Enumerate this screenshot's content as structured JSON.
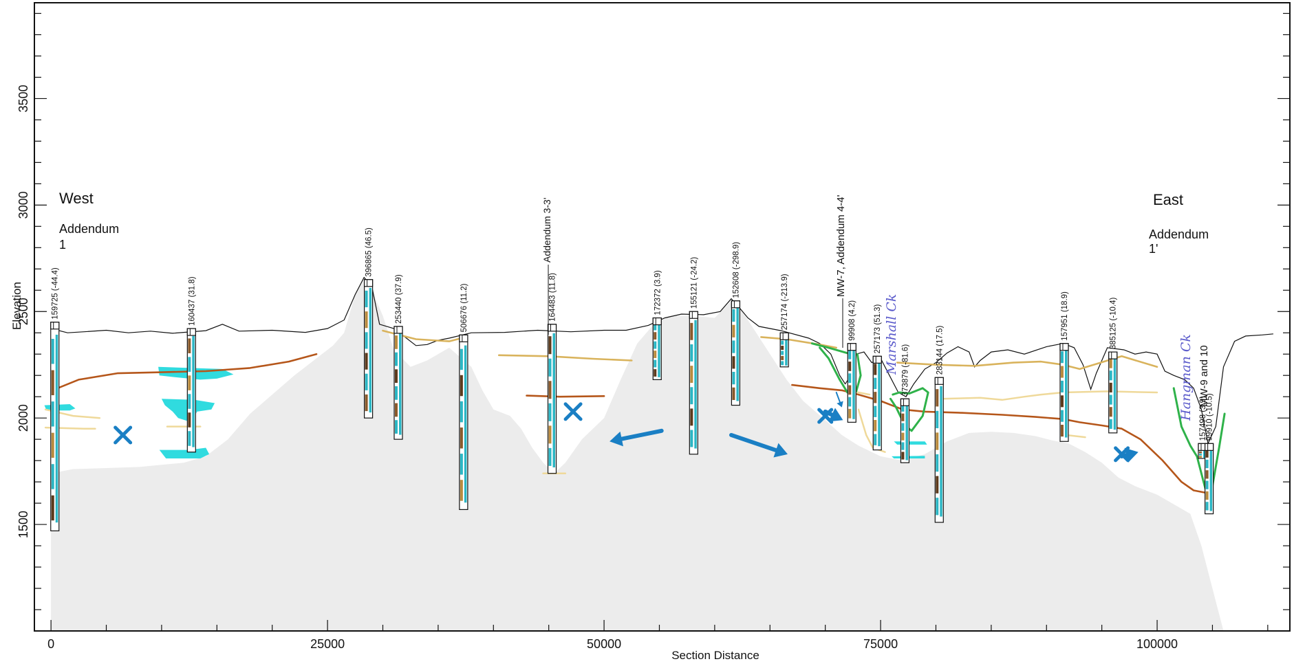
{
  "axes": {
    "x_label": "Section Distance",
    "y_label": "Elevation",
    "x_ticks": [
      "0",
      "25000",
      "50000",
      "75000",
      "100000"
    ],
    "y_ticks": [
      "1500",
      "2000",
      "2500",
      "3000",
      "3500"
    ],
    "x_range": [
      -1500,
      112000
    ],
    "y_range": [
      1000,
      3950
    ]
  },
  "labels": {
    "west": "West",
    "east": "East",
    "addendum_left_1": "Addendum",
    "addendum_left_2": "1",
    "addendum_right_1": "Addendum",
    "addendum_right_2": "1'",
    "marshall": "Marshall Ck",
    "hangman": "Hangman Ck",
    "addendum_33": "Addendum 3-3'",
    "mw7": "MW-7, Addendum 4-4'",
    "mw9": "MW-9 and 10"
  },
  "colors": {
    "background": "#ffffff",
    "bedrock": "#ececec",
    "ground_surface": "#111111",
    "brown_contact": "#b5561a",
    "tan_contact": "#d9b35c",
    "light_tan_contact": "#efd99a",
    "green_contact": "#2fb24a",
    "aquifer_cyan": "#19d7db",
    "arrow_blue": "#1a7fc4"
  },
  "wells": [
    {
      "label": "159725 (-44.4)",
      "x": 350,
      "top": 2450,
      "bottom": 1470
    },
    {
      "label": "160437 (31.8)",
      "x": 12700,
      "top": 2420,
      "bottom": 1840
    },
    {
      "label": "396865 (46.5)",
      "x": 28700,
      "top": 2650,
      "bottom": 2000
    },
    {
      "label": "253440 (37.9)",
      "x": 31400,
      "top": 2430,
      "bottom": 1900
    },
    {
      "label": "506676 (11.2)",
      "x": 37300,
      "top": 2390,
      "bottom": 1570
    },
    {
      "label": "164483 (11.8)",
      "x": 45300,
      "top": 2440,
      "bottom": 1740
    },
    {
      "label": "172372 (3.9)",
      "x": 54800,
      "top": 2470,
      "bottom": 2180
    },
    {
      "label": "155121 (-24.2)",
      "x": 58100,
      "top": 2500,
      "bottom": 1830
    },
    {
      "label": "152608 (-298.9)",
      "x": 61900,
      "top": 2550,
      "bottom": 2060
    },
    {
      "label": "257174 (-213.9)",
      "x": 66300,
      "top": 2400,
      "bottom": 2240
    },
    {
      "label": "99908 (4.2)",
      "x": 72400,
      "top": 2350,
      "bottom": 1980
    },
    {
      "label": "257173 (51.3)",
      "x": 74700,
      "top": 2290,
      "bottom": 1850
    },
    {
      "label": "373879 (-81.6)",
      "x": 77200,
      "top": 2090,
      "bottom": 1790
    },
    {
      "label": "283144 (17.5)",
      "x": 80300,
      "top": 2190,
      "bottom": 1510
    },
    {
      "label": "157951 (18.9)",
      "x": 91600,
      "top": 2350,
      "bottom": 1890
    },
    {
      "label": "385125 (-10.4)",
      "x": 96000,
      "top": 2310,
      "bottom": 1930
    },
    {
      "label": "157498 (3.9)",
      "x": 104100,
      "top": 1880,
      "bottom": 1810
    },
    {
      "label": "99910 (-10.5)",
      "x": 104700,
      "top": 1880,
      "bottom": 1550
    }
  ],
  "ground_surface": [
    [
      0,
      2420
    ],
    [
      1500,
      2400
    ],
    [
      3000,
      2405
    ],
    [
      5000,
      2412
    ],
    [
      7000,
      2400
    ],
    [
      9000,
      2408
    ],
    [
      11000,
      2398
    ],
    [
      14000,
      2410
    ],
    [
      15500,
      2440
    ],
    [
      17000,
      2408
    ],
    [
      20000,
      2412
    ],
    [
      23000,
      2402
    ],
    [
      25000,
      2420
    ],
    [
      26500,
      2460
    ],
    [
      27500,
      2580
    ],
    [
      28300,
      2660
    ],
    [
      29000,
      2620
    ],
    [
      29700,
      2440
    ],
    [
      31000,
      2420
    ],
    [
      32000,
      2380
    ],
    [
      33000,
      2340
    ],
    [
      34000,
      2345
    ],
    [
      35000,
      2365
    ],
    [
      36000,
      2375
    ],
    [
      38000,
      2400
    ],
    [
      41000,
      2402
    ],
    [
      44000,
      2412
    ],
    [
      47000,
      2405
    ],
    [
      50000,
      2412
    ],
    [
      52000,
      2412
    ],
    [
      54000,
      2435
    ],
    [
      55500,
      2470
    ],
    [
      57000,
      2488
    ],
    [
      59000,
      2485
    ],
    [
      60500,
      2500
    ],
    [
      61500,
      2560
    ],
    [
      62200,
      2520
    ],
    [
      63000,
      2470
    ],
    [
      64000,
      2430
    ],
    [
      66000,
      2410
    ],
    [
      68500,
      2375
    ],
    [
      69500,
      2350
    ],
    [
      70500,
      2300
    ],
    [
      71300,
      2200
    ],
    [
      71800,
      2160
    ],
    [
      72200,
      2190
    ],
    [
      72800,
      2300
    ],
    [
      73500,
      2310
    ],
    [
      74200,
      2260
    ],
    [
      75000,
      2280
    ],
    [
      75800,
      2200
    ],
    [
      76600,
      2120
    ],
    [
      77300,
      2100
    ],
    [
      78000,
      2160
    ],
    [
      79000,
      2230
    ],
    [
      80000,
      2260
    ],
    [
      81000,
      2305
    ],
    [
      82000,
      2335
    ],
    [
      83000,
      2310
    ],
    [
      83500,
      2240
    ],
    [
      84000,
      2270
    ],
    [
      85000,
      2310
    ],
    [
      86500,
      2320
    ],
    [
      88000,
      2300
    ],
    [
      90000,
      2335
    ],
    [
      91500,
      2350
    ],
    [
      92500,
      2330
    ],
    [
      93300,
      2250
    ],
    [
      94000,
      2135
    ],
    [
      94500,
      2210
    ],
    [
      95500,
      2330
    ],
    [
      97000,
      2320
    ],
    [
      98000,
      2300
    ],
    [
      99000,
      2310
    ],
    [
      100000,
      2300
    ],
    [
      100700,
      2220
    ],
    [
      101500,
      2200
    ],
    [
      102500,
      2180
    ],
    [
      103300,
      2140
    ],
    [
      104000,
      2040
    ],
    [
      104600,
      1880
    ],
    [
      105300,
      1960
    ],
    [
      106000,
      2240
    ],
    [
      107000,
      2360
    ],
    [
      108000,
      2385
    ],
    [
      109500,
      2390
    ],
    [
      110500,
      2395
    ]
  ],
  "bedrock": [
    [
      0,
      1000
    ],
    [
      0,
      1740
    ],
    [
      2000,
      1760
    ],
    [
      5000,
      1765
    ],
    [
      8000,
      1770
    ],
    [
      10000,
      1780
    ],
    [
      12000,
      1790
    ],
    [
      14000,
      1820
    ],
    [
      16000,
      1900
    ],
    [
      18000,
      2020
    ],
    [
      20000,
      2110
    ],
    [
      22000,
      2200
    ],
    [
      24000,
      2280
    ],
    [
      25500,
      2340
    ],
    [
      26500,
      2400
    ],
    [
      27500,
      2580
    ],
    [
      28300,
      2650
    ],
    [
      29000,
      2600
    ],
    [
      30000,
      2480
    ],
    [
      31000,
      2320
    ],
    [
      32500,
      2240
    ],
    [
      34000,
      2270
    ],
    [
      36000,
      2330
    ],
    [
      38000,
      2240
    ],
    [
      39000,
      2130
    ],
    [
      40000,
      2040
    ],
    [
      41500,
      2010
    ],
    [
      42500,
      1950
    ],
    [
      43500,
      1860
    ],
    [
      44500,
      1790
    ],
    [
      45500,
      1740
    ],
    [
      46500,
      1790
    ],
    [
      48000,
      1900
    ],
    [
      50000,
      2000
    ],
    [
      51500,
      2180
    ],
    [
      53000,
      2350
    ],
    [
      54500,
      2440
    ],
    [
      56000,
      2480
    ],
    [
      58000,
      2480
    ],
    [
      60000,
      2470
    ],
    [
      61500,
      2550
    ],
    [
      62500,
      2500
    ],
    [
      63500,
      2420
    ],
    [
      65000,
      2300
    ],
    [
      66500,
      2180
    ],
    [
      68000,
      2080
    ],
    [
      70000,
      1990
    ],
    [
      71500,
      1920
    ],
    [
      73000,
      1870
    ],
    [
      75000,
      1820
    ],
    [
      77000,
      1800
    ],
    [
      79000,
      1830
    ],
    [
      81000,
      1890
    ],
    [
      83000,
      1930
    ],
    [
      85000,
      1935
    ],
    [
      87000,
      1930
    ],
    [
      89000,
      1915
    ],
    [
      90500,
      1895
    ],
    [
      92000,
      1880
    ],
    [
      93500,
      1840
    ],
    [
      95000,
      1790
    ],
    [
      96500,
      1720
    ],
    [
      98000,
      1680
    ],
    [
      100000,
      1640
    ],
    [
      102000,
      1580
    ],
    [
      103000,
      1550
    ],
    [
      104000,
      1400
    ],
    [
      105000,
      1200
    ],
    [
      106000,
      1000
    ]
  ],
  "contacts": {
    "brown_left": [
      [
        600,
        2140
      ],
      [
        2500,
        2180
      ],
      [
        6000,
        2210
      ],
      [
        10000,
        2215
      ],
      [
        14000,
        2220
      ],
      [
        18000,
        2235
      ],
      [
        21500,
        2265
      ],
      [
        24000,
        2300
      ]
    ],
    "brown_mid": [
      [
        43000,
        2105
      ],
      [
        46000,
        2100
      ],
      [
        50000,
        2103
      ]
    ],
    "brown_right": [
      [
        67000,
        2155
      ],
      [
        69500,
        2140
      ],
      [
        71500,
        2130
      ],
      [
        73000,
        2110
      ],
      [
        75000,
        2080
      ],
      [
        77000,
        2040
      ],
      [
        79000,
        2030
      ],
      [
        82000,
        2025
      ],
      [
        86000,
        2015
      ],
      [
        89000,
        2005
      ],
      [
        91500,
        1995
      ],
      [
        93000,
        1980
      ],
      [
        95000,
        1965
      ],
      [
        96800,
        1950
      ],
      [
        98500,
        1900
      ],
      [
        100500,
        1800
      ],
      [
        102200,
        1700
      ],
      [
        103300,
        1660
      ],
      [
        104300,
        1650
      ]
    ],
    "tan_1": [
      [
        30000,
        2410
      ],
      [
        33000,
        2370
      ],
      [
        36000,
        2360
      ],
      [
        37500,
        2380
      ]
    ],
    "tan_2": [
      [
        40500,
        2295
      ],
      [
        45000,
        2290
      ],
      [
        49000,
        2278
      ],
      [
        52500,
        2270
      ]
    ],
    "tan_3": [
      [
        64200,
        2380
      ],
      [
        66500,
        2370
      ],
      [
        69500,
        2345
      ],
      [
        71000,
        2330
      ]
    ],
    "tan_4": [
      [
        76500,
        2260
      ],
      [
        80000,
        2250
      ],
      [
        83500,
        2245
      ],
      [
        87000,
        2260
      ],
      [
        89500,
        2265
      ],
      [
        91500,
        2250
      ],
      [
        93000,
        2230
      ],
      [
        96800,
        2290
      ],
      [
        100000,
        2240
      ]
    ],
    "ltan_1": [
      [
        -500,
        2040
      ],
      [
        2000,
        2010
      ],
      [
        4400,
        2000
      ]
    ],
    "ltan_2": [
      [
        -500,
        1955
      ],
      [
        3000,
        1950
      ],
      [
        4000,
        1950
      ]
    ],
    "ltan_3": [
      [
        10500,
        1960
      ],
      [
        12500,
        1960
      ],
      [
        13500,
        1960
      ]
    ],
    "ltan_4": [
      [
        72000,
        2130
      ],
      [
        74000,
        2110
      ]
    ],
    "ltan_5": [
      [
        80500,
        2090
      ],
      [
        84000,
        2095
      ],
      [
        86000,
        2085
      ],
      [
        88000,
        2100
      ],
      [
        89500,
        2110
      ],
      [
        91500,
        2120
      ],
      [
        95500,
        2125
      ],
      [
        100000,
        2120
      ]
    ],
    "ltan_6": [
      [
        73000,
        2040
      ],
      [
        73700,
        1920
      ],
      [
        74300,
        1860
      ],
      [
        75400,
        1840
      ]
    ],
    "ltan_7": [
      [
        91800,
        1920
      ],
      [
        93500,
        1910
      ]
    ],
    "ltan_8": [
      [
        44500,
        1740
      ],
      [
        46500,
        1740
      ]
    ],
    "green_1": [
      [
        68800,
        2350
      ],
      [
        70300,
        2330
      ],
      [
        71300,
        2315
      ],
      [
        72300,
        2300
      ],
      [
        72900,
        2300
      ],
      [
        73200,
        2200
      ],
      [
        72800,
        2125
      ],
      [
        72000,
        2120
      ],
      [
        71300,
        2180
      ],
      [
        70300,
        2280
      ],
      [
        69500,
        2330
      ]
    ],
    "green_2": [
      [
        75900,
        2090
      ],
      [
        76400,
        2050
      ],
      [
        77200,
        1965
      ],
      [
        77800,
        1940
      ],
      [
        78800,
        2010
      ],
      [
        79300,
        2120
      ],
      [
        78800,
        2140
      ],
      [
        77600,
        2115
      ],
      [
        76700,
        2120
      ],
      [
        76100,
        2110
      ]
    ],
    "green_3": [
      [
        101500,
        2140
      ],
      [
        102200,
        1960
      ],
      [
        103000,
        1870
      ],
      [
        103600,
        1820
      ],
      [
        104400,
        1660
      ],
      [
        105000,
        1680
      ],
      [
        105600,
        1860
      ],
      [
        106100,
        2020
      ]
    ]
  },
  "aquifers": [
    [
      [
        -600,
        2060
      ],
      [
        1700,
        2065
      ],
      [
        2200,
        2045
      ],
      [
        1700,
        2035
      ],
      [
        -400,
        2035
      ]
    ],
    [
      [
        9700,
        2240
      ],
      [
        15500,
        2230
      ],
      [
        16500,
        2205
      ],
      [
        15000,
        2185
      ],
      [
        13500,
        2180
      ],
      [
        11500,
        2190
      ],
      [
        9800,
        2200
      ]
    ],
    [
      [
        10000,
        2090
      ],
      [
        13000,
        2085
      ],
      [
        14800,
        2070
      ],
      [
        14500,
        2040
      ],
      [
        13200,
        2030
      ],
      [
        12700,
        1980
      ],
      [
        11500,
        2000
      ],
      [
        11000,
        2030
      ],
      [
        10300,
        2060
      ]
    ],
    [
      [
        9800,
        1850
      ],
      [
        12500,
        1850
      ],
      [
        14000,
        1860
      ],
      [
        14300,
        1830
      ],
      [
        13500,
        1810
      ],
      [
        12000,
        1810
      ],
      [
        10400,
        1810
      ]
    ],
    [
      [
        76200,
        1890
      ],
      [
        79000,
        1890
      ],
      [
        79200,
        1875
      ],
      [
        76500,
        1875
      ]
    ],
    [
      [
        76000,
        1820
      ],
      [
        79000,
        1822
      ],
      [
        79000,
        1810
      ],
      [
        76200,
        1810
      ]
    ]
  ],
  "x_marks": [
    [
      6500,
      1920
    ],
    [
      47200,
      2030
    ]
  ],
  "arrows": [
    {
      "from": [
        55200,
        1940
      ],
      "to": [
        50500,
        1890
      ],
      "double": false
    },
    {
      "from": [
        61500,
        1920
      ],
      "to": [
        66600,
        1830
      ],
      "double": false
    },
    {
      "from": [
        70000,
        2030
      ],
      "to": [
        71600,
        1990
      ],
      "double": true
    },
    {
      "from": [
        96800,
        1820
      ],
      "to": [
        98300,
        1840
      ],
      "double": true
    },
    {
      "from": [
        71000,
        2120
      ],
      "to": [
        71500,
        2050
      ],
      "double": false,
      "thin": true
    }
  ]
}
